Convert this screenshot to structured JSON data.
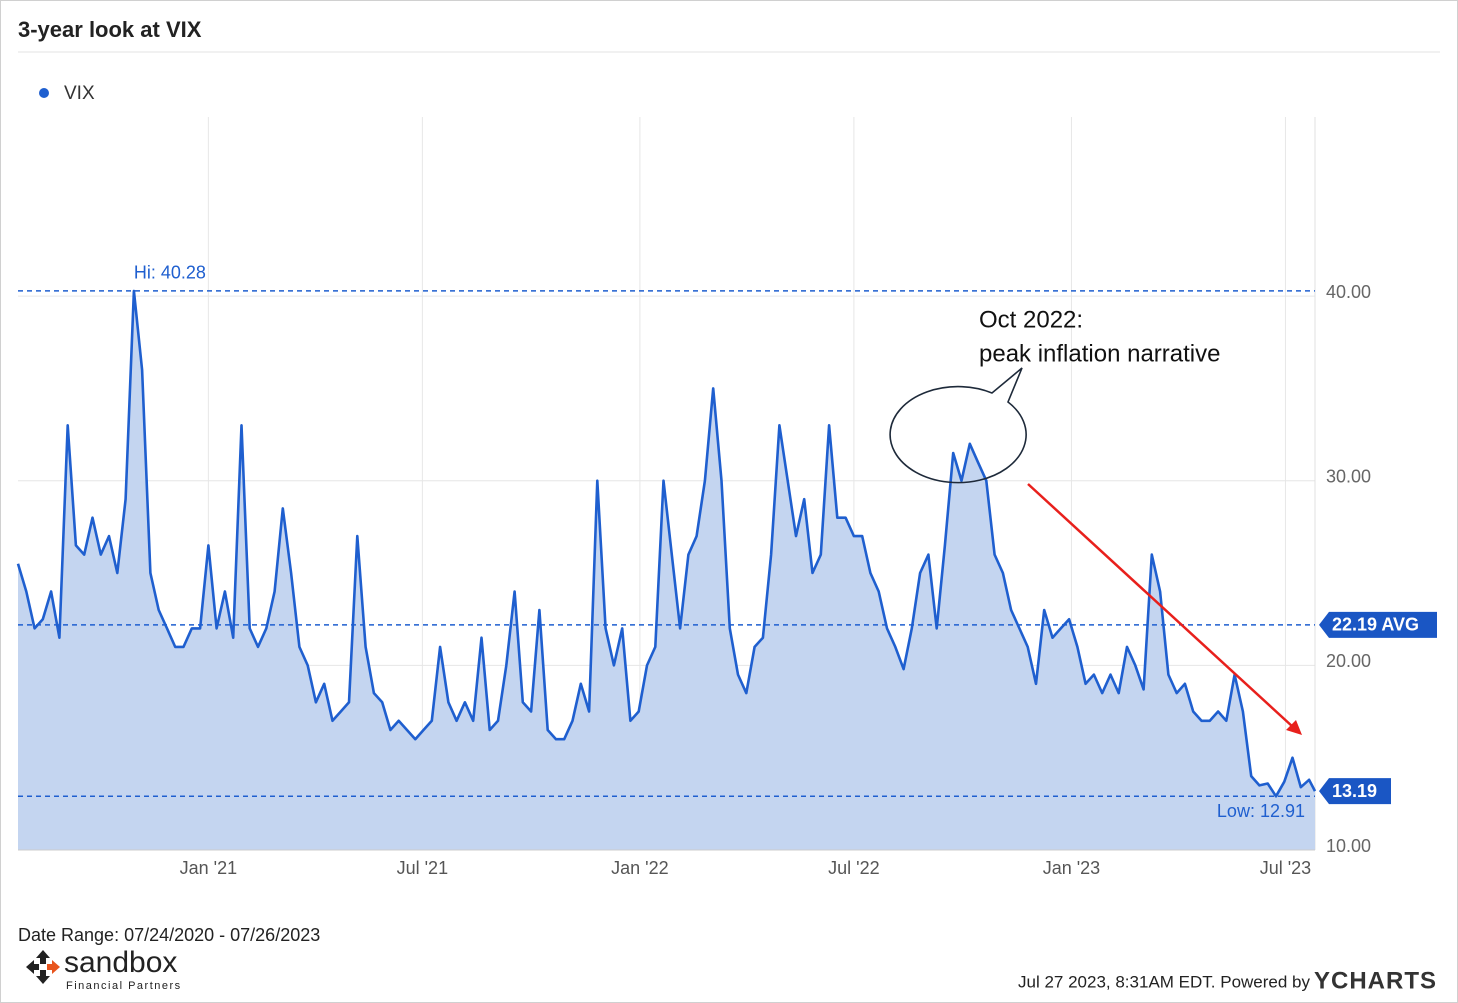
{
  "chart_data": {
    "type": "area",
    "title": "3-year look at VIX",
    "series": [
      {
        "name": "VIX",
        "color": "#1f5fcf",
        "fill": "#c4d5f0",
        "x": [
          "2020-07-24",
          "2020-07-31",
          "2020-08-07",
          "2020-08-14",
          "2020-08-21",
          "2020-08-28",
          "2020-09-04",
          "2020-09-11",
          "2020-09-18",
          "2020-09-25",
          "2020-10-02",
          "2020-10-09",
          "2020-10-16",
          "2020-10-23",
          "2020-10-30",
          "2020-11-06",
          "2020-11-13",
          "2020-11-20",
          "2020-11-27",
          "2020-12-04",
          "2020-12-11",
          "2020-12-18",
          "2020-12-25",
          "2021-01-01",
          "2021-01-08",
          "2021-01-15",
          "2021-01-22",
          "2021-01-29",
          "2021-02-05",
          "2021-02-12",
          "2021-02-19",
          "2021-02-26",
          "2021-03-05",
          "2021-03-12",
          "2021-03-19",
          "2021-03-26",
          "2021-04-02",
          "2021-04-09",
          "2021-04-16",
          "2021-04-23",
          "2021-04-30",
          "2021-05-07",
          "2021-05-14",
          "2021-05-21",
          "2021-05-28",
          "2021-06-04",
          "2021-06-11",
          "2021-06-18",
          "2021-06-25",
          "2021-07-02",
          "2021-07-09",
          "2021-07-16",
          "2021-07-23",
          "2021-07-30",
          "2021-08-06",
          "2021-08-13",
          "2021-08-20",
          "2021-08-27",
          "2021-09-03",
          "2021-09-10",
          "2021-09-17",
          "2021-09-24",
          "2021-10-01",
          "2021-10-08",
          "2021-10-15",
          "2021-10-22",
          "2021-10-29",
          "2021-11-05",
          "2021-11-12",
          "2021-11-19",
          "2021-11-26",
          "2021-12-03",
          "2021-12-10",
          "2021-12-17",
          "2021-12-24",
          "2021-12-31",
          "2022-01-07",
          "2022-01-14",
          "2022-01-21",
          "2022-01-28",
          "2022-02-04",
          "2022-02-11",
          "2022-02-18",
          "2022-02-25",
          "2022-03-04",
          "2022-03-11",
          "2022-03-18",
          "2022-03-25",
          "2022-04-01",
          "2022-04-08",
          "2022-04-15",
          "2022-04-22",
          "2022-04-29",
          "2022-05-06",
          "2022-05-13",
          "2022-05-20",
          "2022-05-27",
          "2022-06-03",
          "2022-06-10",
          "2022-06-17",
          "2022-06-24",
          "2022-07-01",
          "2022-07-08",
          "2022-07-15",
          "2022-07-22",
          "2022-07-29",
          "2022-08-05",
          "2022-08-12",
          "2022-08-19",
          "2022-08-26",
          "2022-09-02",
          "2022-09-09",
          "2022-09-16",
          "2022-09-23",
          "2022-09-30",
          "2022-10-07",
          "2022-10-14",
          "2022-10-21",
          "2022-10-28",
          "2022-11-04",
          "2022-11-11",
          "2022-11-18",
          "2022-11-25",
          "2022-12-02",
          "2022-12-09",
          "2022-12-16",
          "2022-12-23",
          "2022-12-30",
          "2023-01-06",
          "2023-01-13",
          "2023-01-20",
          "2023-01-27",
          "2023-02-03",
          "2023-02-10",
          "2023-02-17",
          "2023-02-24",
          "2023-03-03",
          "2023-03-10",
          "2023-03-17",
          "2023-03-24",
          "2023-03-31",
          "2023-04-07",
          "2023-04-14",
          "2023-04-21",
          "2023-04-28",
          "2023-05-05",
          "2023-05-12",
          "2023-05-19",
          "2023-05-26",
          "2023-06-02",
          "2023-06-09",
          "2023-06-16",
          "2023-06-23",
          "2023-06-30",
          "2023-07-07",
          "2023-07-14",
          "2023-07-21",
          "2023-07-26"
        ],
        "values": [
          25.5,
          24,
          22,
          22.5,
          24,
          21.5,
          33,
          26.5,
          26,
          28,
          26,
          27,
          25,
          29,
          40.28,
          36,
          25,
          23,
          22,
          21,
          21,
          22,
          22,
          26.5,
          22,
          24,
          21.5,
          33,
          22,
          21,
          22,
          24,
          28.5,
          25,
          21,
          20,
          18,
          19,
          17,
          17.5,
          18,
          27,
          21,
          18.5,
          18,
          16.5,
          17,
          16.5,
          16,
          16.5,
          17,
          21,
          18,
          17,
          18,
          17,
          21.5,
          16.5,
          17,
          20,
          24,
          18,
          17.5,
          23,
          16.5,
          16,
          16,
          17,
          19,
          17.5,
          30,
          22,
          20,
          22,
          17,
          17.5,
          20,
          21,
          30,
          26,
          22,
          26,
          27,
          30,
          35,
          30,
          22,
          19.5,
          18.5,
          21,
          21.5,
          26,
          33,
          30,
          27,
          29,
          25,
          26,
          33,
          28,
          28,
          27,
          27,
          25,
          24,
          22,
          21,
          19.8,
          22,
          25,
          26,
          22,
          26.5,
          31.5,
          30,
          32,
          31,
          30,
          26,
          25,
          23,
          22,
          21,
          19,
          23,
          21.5,
          22,
          22.5,
          21,
          19,
          19.5,
          18.5,
          19.5,
          18.5,
          21,
          20,
          18.7,
          26,
          24,
          19.5,
          18.5,
          19,
          17.5,
          17,
          17,
          17.5,
          17,
          19.5,
          17.5,
          14,
          13.5,
          13.6,
          12.91,
          13.7,
          15,
          13.4,
          13.8,
          13.19
        ]
      }
    ],
    "last_value_label": "13.19",
    "xlim": [
      "2020-07-24",
      "2023-07-26"
    ],
    "xticks": [
      {
        "value": "2021-01-01",
        "label": "Jan '21"
      },
      {
        "value": "2021-07-01",
        "label": "Jul '21"
      },
      {
        "value": "2022-01-01",
        "label": "Jan '22"
      },
      {
        "value": "2022-07-01",
        "label": "Jul '22"
      },
      {
        "value": "2023-01-01",
        "label": "Jan '23"
      },
      {
        "value": "2023-07-01",
        "label": "Jul '23"
      }
    ],
    "ylim": [
      10,
      49.7
    ],
    "yticks": [
      {
        "value": 10,
        "label": "10.00"
      },
      {
        "value": 20,
        "label": "20.00"
      },
      {
        "value": 30,
        "label": "30.00"
      },
      {
        "value": 40,
        "label": "40.00"
      }
    ],
    "grid": true,
    "legend": "top-left",
    "reference_lines": [
      {
        "label": "Hi: 40.28",
        "value": 40.28
      },
      {
        "label": "22.19 AVG",
        "value": 22.19
      },
      {
        "label": "Low: 12.91",
        "value": 12.91
      }
    ],
    "annotation": [
      "Oct 2022:",
      "peak inflation narrative"
    ],
    "date_range": "Date Range: 07/24/2020 - 07/26/2023",
    "footer": "Jul 27 2023, 8:31AM EDT. Powered by",
    "brand": "YCHARTS",
    "logo": {
      "name": "sandbox",
      "tagline": "Financial Partners"
    }
  }
}
